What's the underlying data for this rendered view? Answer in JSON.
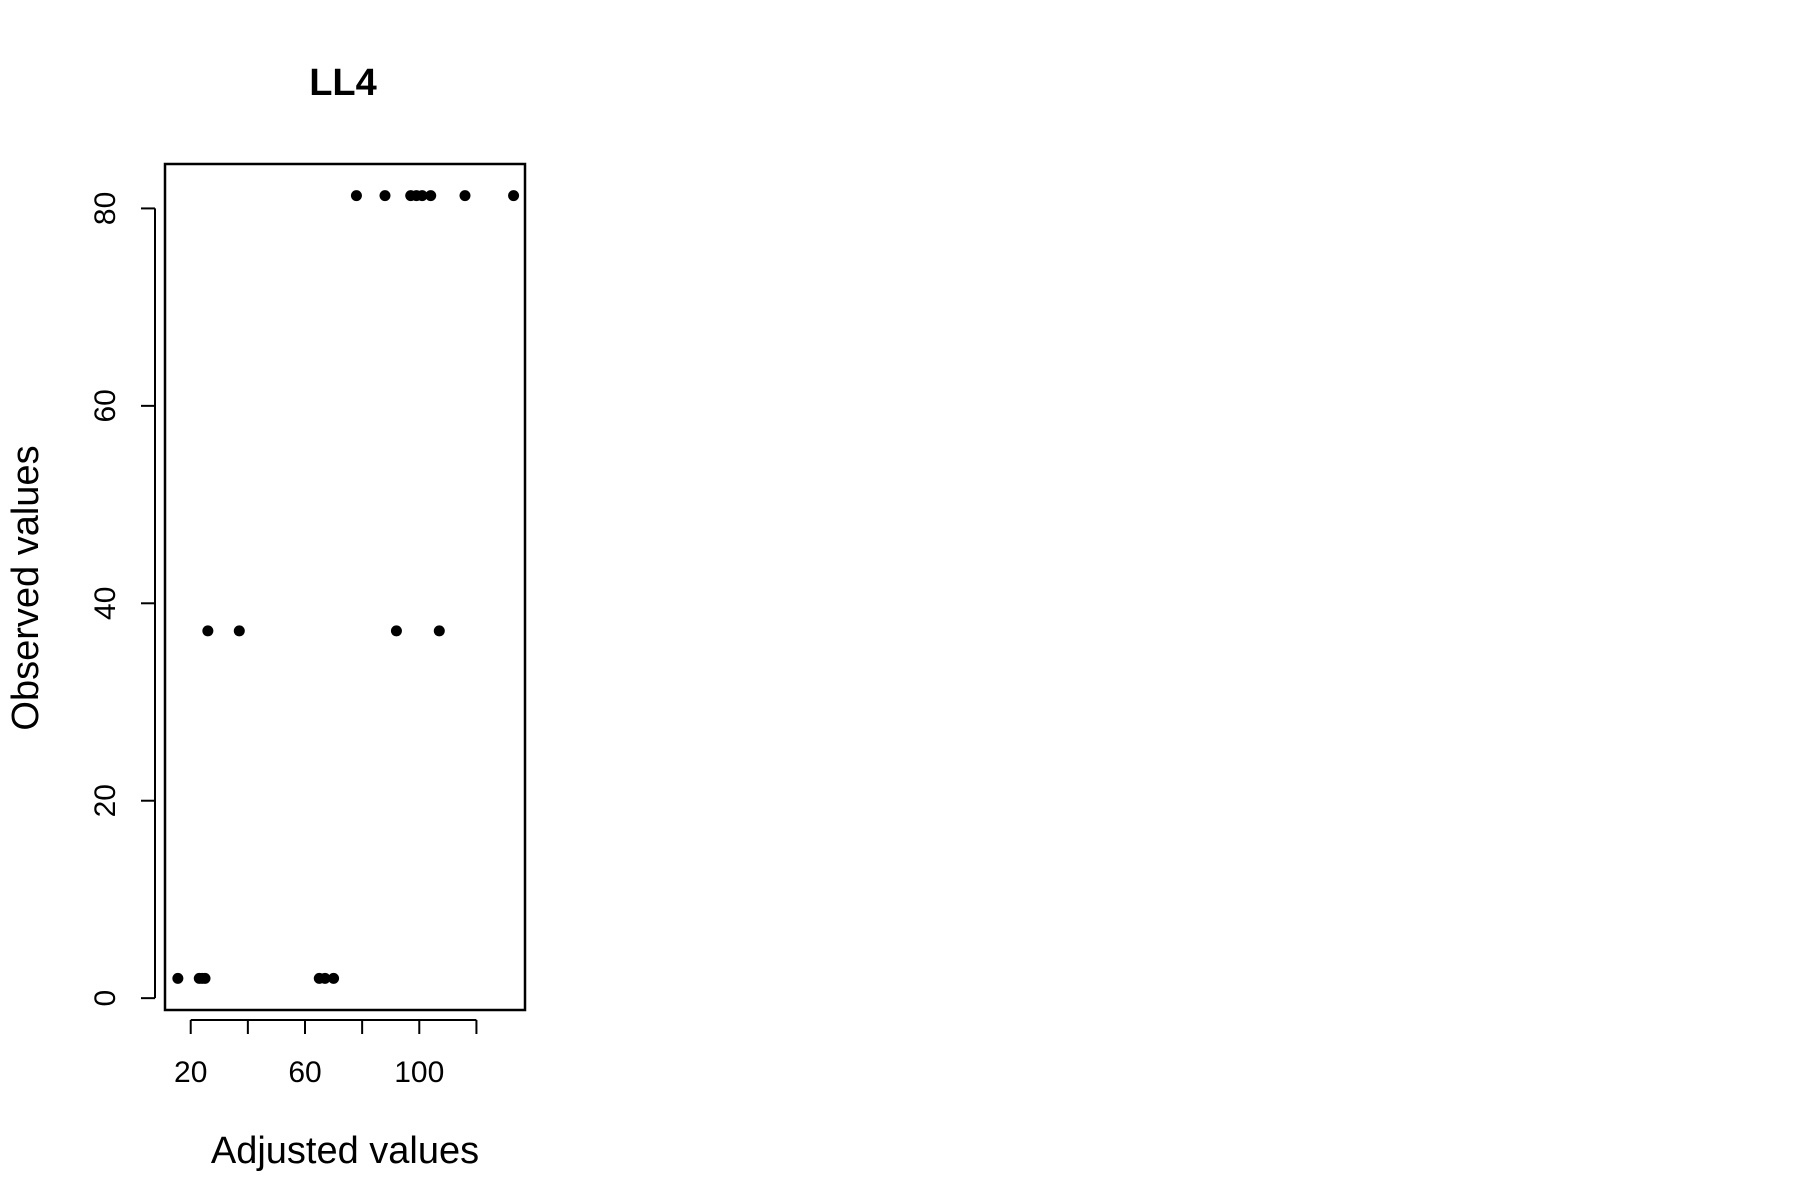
{
  "chart_data": {
    "type": "scatter",
    "title": "LL4",
    "xlabel": "Adjusted values",
    "ylabel": "Observed values",
    "xlim": [
      11,
      137
    ],
    "ylim": [
      -1.2,
      84.5
    ],
    "x_ticks": [
      20,
      40,
      60,
      80,
      100,
      120
    ],
    "x_tick_labels": [
      "20",
      "",
      "60",
      "",
      "100",
      ""
    ],
    "y_ticks": [
      0,
      20,
      40,
      60,
      80
    ],
    "y_tick_labels": [
      "0",
      "20",
      "40",
      "60",
      "80"
    ],
    "grid": false,
    "points": [
      {
        "x": 15.5,
        "y": 2
      },
      {
        "x": 23,
        "y": 2
      },
      {
        "x": 24,
        "y": 2
      },
      {
        "x": 25,
        "y": 2
      },
      {
        "x": 26,
        "y": 37.2
      },
      {
        "x": 37,
        "y": 37.2
      },
      {
        "x": 65,
        "y": 2
      },
      {
        "x": 67,
        "y": 2
      },
      {
        "x": 70,
        "y": 2
      },
      {
        "x": 78,
        "y": 81.3
      },
      {
        "x": 88,
        "y": 81.3
      },
      {
        "x": 92,
        "y": 37.2
      },
      {
        "x": 97,
        "y": 81.3
      },
      {
        "x": 99,
        "y": 81.3
      },
      {
        "x": 101,
        "y": 81.3
      },
      {
        "x": 104,
        "y": 81.3
      },
      {
        "x": 107,
        "y": 37.2
      },
      {
        "x": 116,
        "y": 81.3
      },
      {
        "x": 133,
        "y": 81.3
      }
    ]
  }
}
